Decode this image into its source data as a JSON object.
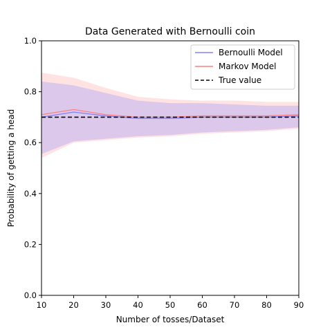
{
  "chart_data": {
    "type": "line",
    "title": "Data Generated with Bernoulli coin",
    "xlabel": "Number of tosses/Dataset",
    "ylabel": "Probability of getting a head",
    "xlim": [
      10,
      90
    ],
    "ylim": [
      0.0,
      1.0
    ],
    "x_ticks": [
      "10",
      "20",
      "30",
      "40",
      "50",
      "60",
      "70",
      "80",
      "90"
    ],
    "y_ticks": [
      "0.0",
      "0.2",
      "0.4",
      "0.6",
      "0.8",
      "1.0"
    ],
    "x": [
      10,
      20,
      30,
      40,
      50,
      60,
      70,
      80,
      90
    ],
    "grid": false,
    "legend_position": "top-right",
    "series": [
      {
        "name": "Bernoulli Model",
        "color": "#8080ff",
        "values": [
          0.7,
          0.72,
          0.705,
          0.695,
          0.695,
          0.7,
          0.7,
          0.7,
          0.705
        ],
        "band_upper": [
          0.84,
          0.825,
          0.795,
          0.765,
          0.755,
          0.755,
          0.75,
          0.745,
          0.745
        ],
        "band_lower": [
          0.555,
          0.605,
          0.615,
          0.625,
          0.63,
          0.64,
          0.645,
          0.65,
          0.66
        ]
      },
      {
        "name": "Markov Model",
        "color": "#ff7f7f",
        "values": [
          0.71,
          0.73,
          0.71,
          0.7,
          0.7,
          0.705,
          0.705,
          0.705,
          0.71
        ],
        "band_upper": [
          0.875,
          0.855,
          0.815,
          0.78,
          0.77,
          0.765,
          0.765,
          0.76,
          0.76
        ],
        "band_lower": [
          0.54,
          0.6,
          0.61,
          0.62,
          0.625,
          0.635,
          0.64,
          0.645,
          0.655
        ]
      },
      {
        "name": "True value",
        "color": "#000000",
        "dashed": true,
        "values": [
          0.7,
          0.7,
          0.7,
          0.7,
          0.7,
          0.7,
          0.7,
          0.7,
          0.7
        ]
      }
    ]
  }
}
